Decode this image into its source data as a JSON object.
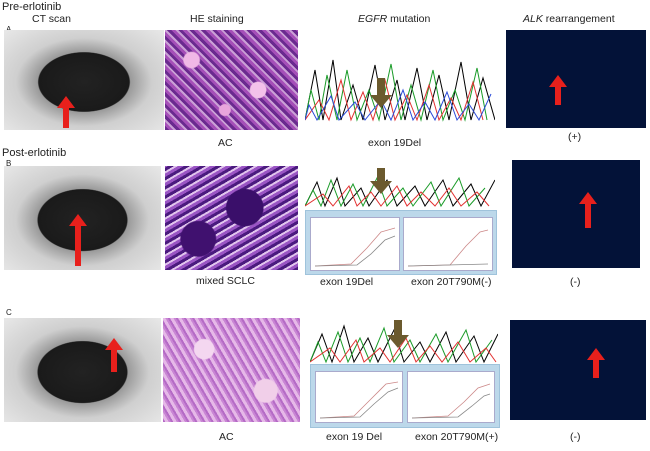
{
  "figure": {
    "pre_label": "Pre-erlotinib",
    "post_label": "Post-erlotinib",
    "col_ct": "CT scan",
    "col_he": "HE staining",
    "col_egfr_gene": "EGFR",
    "col_egfr_rest": " mutation",
    "col_alk_gene": "ALK",
    "col_alk_rest": " rearrangement",
    "rows": [
      {
        "letter": "A",
        "he": "AC",
        "egfr": "exon 19Del",
        "egfr2": "",
        "alk": "(+)"
      },
      {
        "letter": "B",
        "he": "mixed SCLC",
        "egfr": "exon 19Del",
        "egfr2": "exon 20T790M(-)",
        "alk": "(-)"
      },
      {
        "letter": "C",
        "he": "AC",
        "egfr": "exon 19 Del",
        "egfr2": "exon 20T790M(+)",
        "alk": "(-)"
      }
    ]
  },
  "colors": {
    "arrow": "#e8201c",
    "seq_arrow": "#6b5a2e",
    "qpcr_bg": "#bcd8ea",
    "fish_bg": "#031238"
  }
}
